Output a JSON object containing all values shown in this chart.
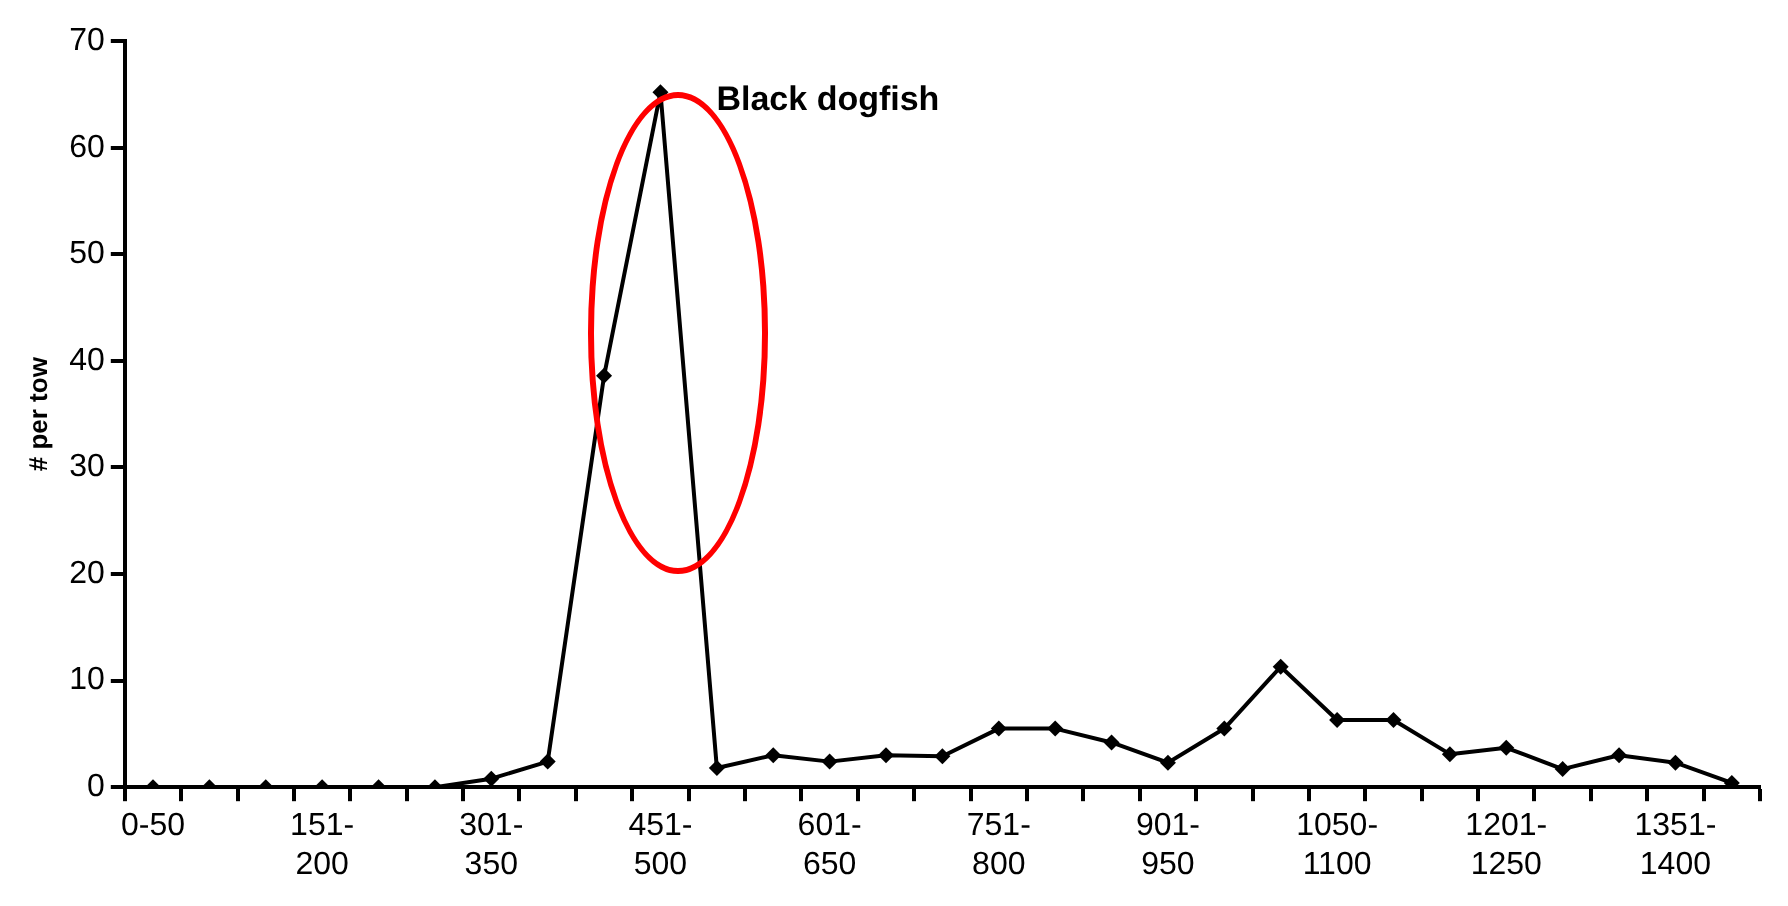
{
  "chart_data": {
    "type": "line",
    "ylabel": "# per tow",
    "categories": [
      "0-50",
      null,
      null,
      "151-200",
      null,
      null,
      "301-350",
      null,
      null,
      "451-500",
      null,
      null,
      "601-650",
      null,
      null,
      "751-800",
      null,
      null,
      "901-950",
      null,
      null,
      "1050-1100",
      null,
      null,
      "1201-1250",
      null,
      null,
      "1351-1400",
      null
    ],
    "series": [
      {
        "color": "#000000",
        "values": [
          0,
          0,
          0,
          0,
          0,
          0,
          0.8,
          2.4,
          38.6,
          65.2,
          1.8,
          3.0,
          2.4,
          3.0,
          2.9,
          5.5,
          5.5,
          4.2,
          2.3,
          5.5,
          11.3,
          6.3,
          6.3,
          3.1,
          3.7,
          1.7,
          3.0,
          2.3,
          0.4
        ]
      }
    ],
    "ylim": [
      0,
      70
    ],
    "yticks": [
      0,
      10,
      20,
      30,
      40,
      50,
      60,
      70
    ],
    "grid": false,
    "legend": false,
    "marker": "diamond",
    "line_style": "solid",
    "annotations": [
      {
        "text": "Black dogfish",
        "x": "451-500",
        "y": 65.2
      }
    ]
  }
}
